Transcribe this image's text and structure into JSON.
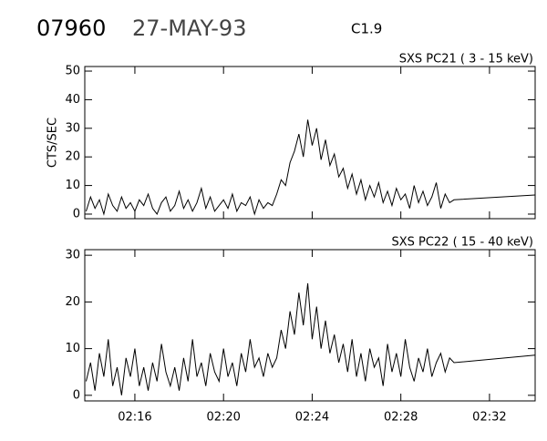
{
  "header": {
    "event": "07960",
    "date": "27-MAY-93",
    "class": "C1.9"
  },
  "chart_data": [
    {
      "type": "line",
      "title": "SXS PC21 (  3 - 15 keV)",
      "y_label": "CTS/SEC",
      "color": "#000000",
      "xlim": [
        13.74,
        34.06
      ],
      "ylim": [
        -1.6,
        51.6
      ],
      "yticks": [
        0,
        10,
        20,
        30,
        40,
        50
      ],
      "x": [
        13.8,
        14.0,
        14.2,
        14.4,
        14.6,
        14.8,
        15.0,
        15.2,
        15.4,
        15.6,
        15.8,
        16.0,
        16.2,
        16.4,
        16.6,
        16.8,
        17.0,
        17.2,
        17.4,
        17.6,
        17.8,
        18.0,
        18.2,
        18.4,
        18.6,
        18.8,
        19.0,
        19.2,
        19.4,
        19.6,
        19.8,
        20.0,
        20.2,
        20.4,
        20.6,
        20.8,
        21.0,
        21.2,
        21.4,
        21.6,
        21.8,
        22.0,
        22.2,
        22.4,
        22.6,
        22.8,
        23.0,
        23.2,
        23.4,
        23.6,
        23.8,
        24.0,
        24.2,
        24.4,
        24.6,
        24.8,
        25.0,
        25.2,
        25.4,
        25.6,
        25.8,
        26.0,
        26.2,
        26.4,
        26.6,
        26.8,
        27.0,
        27.2,
        27.4,
        27.6,
        27.8,
        28.0,
        28.2,
        28.4,
        28.6,
        28.8,
        29.0,
        29.2,
        29.4,
        29.6,
        29.8,
        30.0,
        30.2,
        30.4,
        34.06
      ],
      "values": [
        1,
        6,
        2,
        5,
        0,
        7,
        3,
        1,
        6,
        2,
        4,
        1,
        5,
        3,
        7,
        2,
        0,
        4,
        6,
        1,
        3,
        8,
        2,
        5,
        1,
        4,
        9,
        2,
        6,
        1,
        3,
        5,
        2,
        7,
        1,
        4,
        3,
        6,
        0,
        5,
        2,
        4,
        3,
        7,
        12,
        10,
        18,
        22,
        28,
        20,
        33,
        24,
        30,
        19,
        26,
        17,
        21,
        13,
        16,
        9,
        14,
        7,
        12,
        5,
        10,
        6,
        11,
        4,
        8,
        3,
        9,
        5,
        7,
        2,
        10,
        4,
        8,
        3,
        6,
        11,
        2,
        7,
        4,
        5,
        6.7
      ]
    },
    {
      "type": "line",
      "title": "SXS PC22 ( 15 - 40 keV)",
      "color": "#000000",
      "xlim": [
        13.74,
        34.06
      ],
      "ylim": [
        -1.2,
        31.2
      ],
      "yticks": [
        0,
        10,
        20,
        30
      ],
      "xticks": [
        {
          "value": 16,
          "label": "02:16"
        },
        {
          "value": 20,
          "label": "02:20"
        },
        {
          "value": 24,
          "label": "02:24"
        },
        {
          "value": 28,
          "label": "02:28"
        },
        {
          "value": 32,
          "label": "02:32"
        }
      ],
      "x": [
        13.8,
        14.0,
        14.2,
        14.4,
        14.6,
        14.8,
        15.0,
        15.2,
        15.4,
        15.6,
        15.8,
        16.0,
        16.2,
        16.4,
        16.6,
        16.8,
        17.0,
        17.2,
        17.4,
        17.6,
        17.8,
        18.0,
        18.2,
        18.4,
        18.6,
        18.8,
        19.0,
        19.2,
        19.4,
        19.6,
        19.8,
        20.0,
        20.2,
        20.4,
        20.6,
        20.8,
        21.0,
        21.2,
        21.4,
        21.6,
        21.8,
        22.0,
        22.2,
        22.4,
        22.6,
        22.8,
        23.0,
        23.2,
        23.4,
        23.6,
        23.8,
        24.0,
        24.2,
        24.4,
        24.6,
        24.8,
        25.0,
        25.2,
        25.4,
        25.6,
        25.8,
        26.0,
        26.2,
        26.4,
        26.6,
        26.8,
        27.0,
        27.2,
        27.4,
        27.6,
        27.8,
        28.0,
        28.2,
        28.4,
        28.6,
        28.8,
        29.0,
        29.2,
        29.4,
        29.6,
        29.8,
        30.0,
        30.2,
        30.4,
        34.06
      ],
      "values": [
        3,
        7,
        1,
        9,
        4,
        12,
        2,
        6,
        0,
        8,
        4,
        10,
        2,
        6,
        1,
        7,
        3,
        11,
        5,
        2,
        6,
        1,
        8,
        3,
        12,
        4,
        7,
        2,
        9,
        5,
        3,
        10,
        4,
        7,
        2,
        9,
        5,
        12,
        6,
        8,
        4,
        9,
        6,
        8,
        14,
        10,
        18,
        13,
        22,
        15,
        24,
        12,
        19,
        10,
        16,
        9,
        13,
        7,
        11,
        5,
        12,
        4,
        9,
        3,
        10,
        6,
        8,
        2,
        11,
        5,
        9,
        4,
        12,
        6,
        3,
        8,
        5,
        10,
        4,
        7,
        9,
        5,
        8,
        7,
        8.6
      ]
    }
  ]
}
